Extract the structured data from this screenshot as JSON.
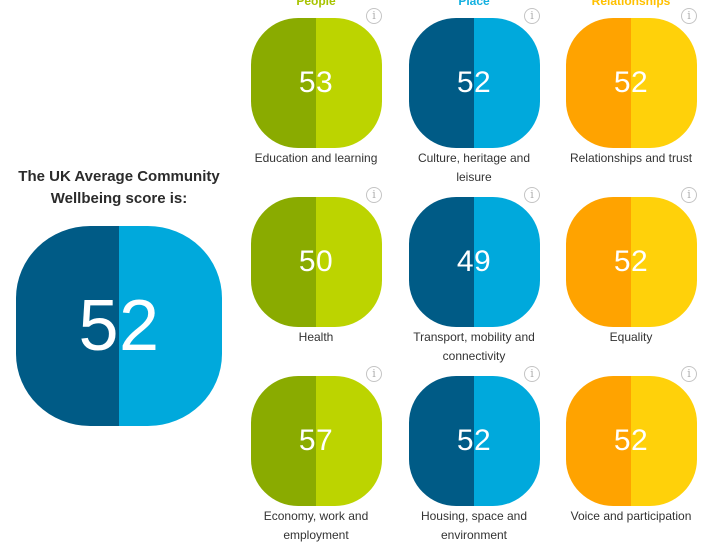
{
  "intro": {
    "line1": "The UK Average Community",
    "line2": "Wellbeing score is:"
  },
  "overall_score": "52",
  "columns": [
    {
      "title": "People",
      "color": "#a7c300"
    },
    {
      "title": "Place",
      "color": "#12b0e0"
    },
    {
      "title": "Relationships",
      "color": "#ffc000"
    }
  ],
  "rows": [
    [
      {
        "score": "53",
        "label": [
          "Education and learning"
        ]
      },
      {
        "score": "52",
        "label": [
          "Culture, heritage and",
          "leisure"
        ]
      },
      {
        "score": "52",
        "label": [
          "Relationships and trust"
        ]
      }
    ],
    [
      {
        "score": "50",
        "label": [
          "Health"
        ]
      },
      {
        "score": "49",
        "label": [
          "Transport, mobility and",
          "connectivity"
        ]
      },
      {
        "score": "52",
        "label": [
          "Equality"
        ]
      }
    ],
    [
      {
        "score": "57",
        "label": [
          "Economy, work and",
          "employment"
        ]
      },
      {
        "score": "52",
        "label": [
          "Housing, space and",
          "environment"
        ]
      },
      {
        "score": "52",
        "label": [
          "Voice and participation"
        ]
      }
    ]
  ],
  "palette": {
    "people": [
      "#8aab00",
      "#bcd400"
    ],
    "place": [
      "#005b86",
      "#00a9dc"
    ],
    "relationships": [
      "#ffa300",
      "#ffd10a"
    ]
  },
  "icons": {
    "info": "info-icon"
  },
  "info_glyph": "i"
}
